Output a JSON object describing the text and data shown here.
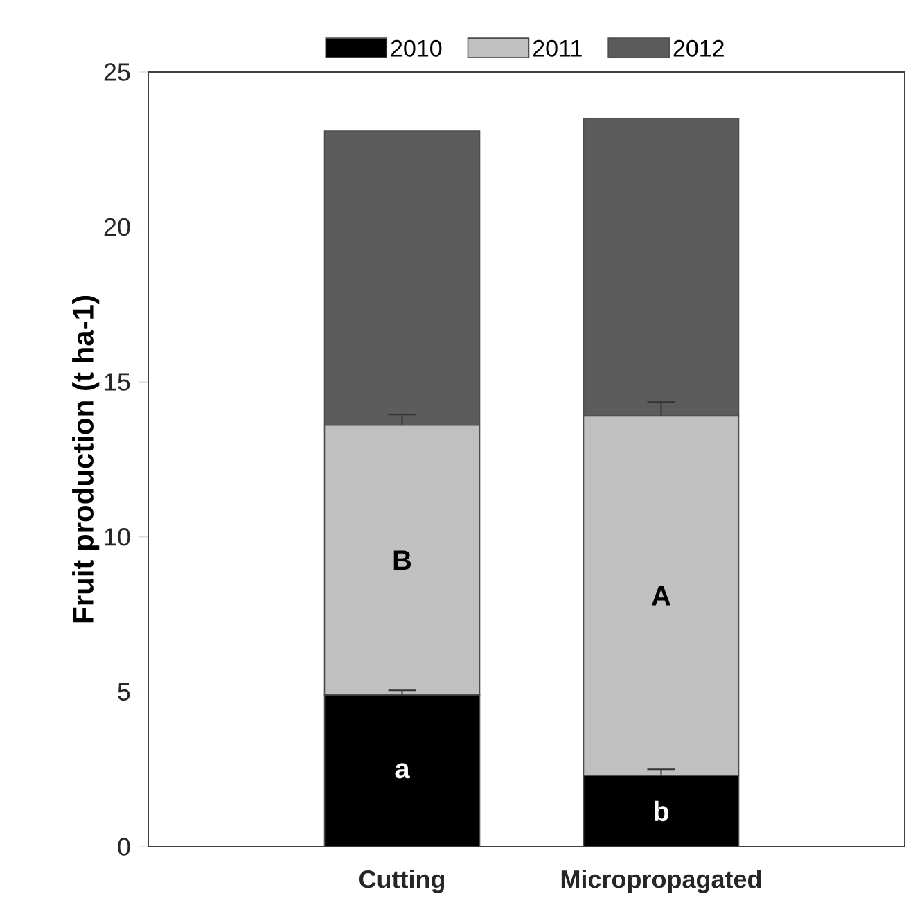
{
  "chart_data": {
    "type": "bar",
    "stacked": true,
    "ylabel": "Fruit production (t ha-1)",
    "categories": [
      "Cutting",
      "Micropropagated"
    ],
    "series": [
      {
        "name": "2010",
        "color": "#000000",
        "values": [
          4.9,
          2.3
        ],
        "errors": [
          [
            4.9,
            5.05
          ],
          [
            2.3,
            2.5
          ]
        ]
      },
      {
        "name": "2011",
        "color": "#c0c0c0",
        "values": [
          8.7,
          11.6
        ],
        "errors": [
          [
            13.6,
            13.95
          ],
          [
            13.9,
            14.35
          ]
        ]
      },
      {
        "name": "2012",
        "color": "#5c5c5c",
        "values": [
          9.5,
          9.6
        ]
      }
    ],
    "ylim": [
      0,
      25
    ],
    "yticks": [
      0,
      5,
      10,
      15,
      20,
      25
    ],
    "legend": "top",
    "annotations": [
      "a",
      "b",
      "B",
      "A"
    ]
  }
}
